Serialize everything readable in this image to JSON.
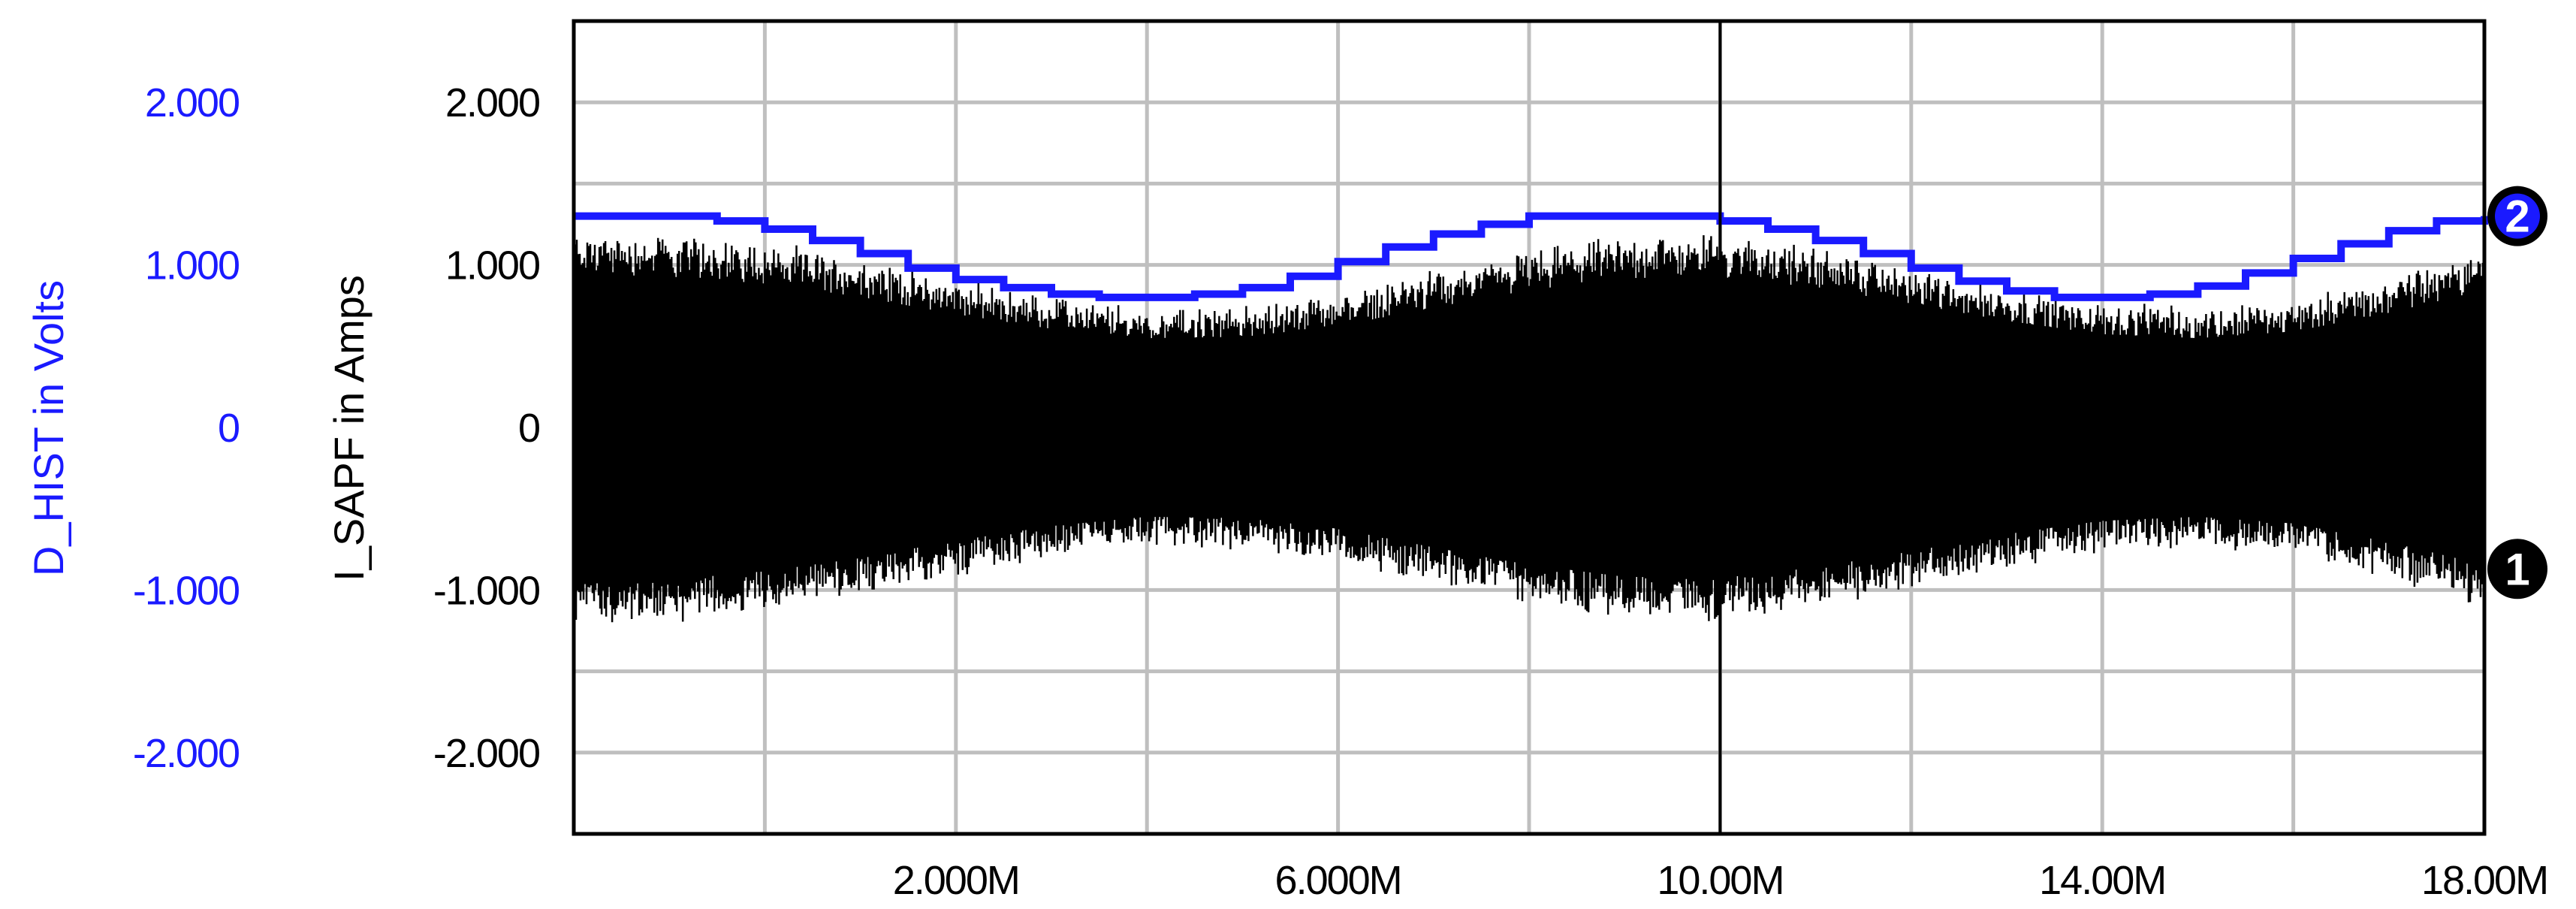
{
  "chart_data": {
    "type": "line",
    "title": "",
    "xlim": [
      0,
      20000000
    ],
    "x_ticks": [
      {
        "value": 4000000,
        "label": "2.000M"
      },
      {
        "value": 8000000,
        "label": "6.000M"
      },
      {
        "value": 12000000,
        "label": "10.00M"
      },
      {
        "value": 16000000,
        "label": "14.00M"
      },
      {
        "value": 20000000,
        "label": "18.00M"
      }
    ],
    "y_axes": [
      {
        "name": "primary",
        "ylabel": "I_SAPF in Amps",
        "color": "#000000",
        "ylim": [
          -2.5,
          2.5
        ],
        "ticks": [
          {
            "value": 2,
            "label": "2.000"
          },
          {
            "value": 1,
            "label": "1.000"
          },
          {
            "value": 0,
            "label": "0"
          },
          {
            "value": -1,
            "label": "-1.000"
          },
          {
            "value": -2,
            "label": "-2.000"
          }
        ]
      },
      {
        "name": "secondary",
        "ylabel": "D_HIST in Volts",
        "color": "#1a1aff",
        "ylim": [
          -2.5,
          2.5
        ],
        "ticks": [
          {
            "value": 2,
            "label": "2.000"
          },
          {
            "value": 1,
            "label": "1.000"
          },
          {
            "value": 0,
            "label": "0"
          },
          {
            "value": -1,
            "label": "-1.000"
          },
          {
            "value": -2,
            "label": "-2.000"
          }
        ]
      }
    ],
    "series": [
      {
        "marker": "1",
        "axis": "primary",
        "color": "#000000",
        "style": "dense noisy band (high-frequency signal)",
        "envelope": {
          "x": [
            0,
            1000000,
            2000000,
            3000000,
            4000000,
            5000000,
            6000000,
            7000000,
            8000000,
            9000000,
            10000000,
            11000000,
            12000000,
            13000000,
            14000000,
            15000000,
            16000000,
            17000000,
            18000000,
            19000000,
            20000000
          ],
          "upper": [
            1.15,
            1.13,
            1.08,
            0.98,
            0.85,
            0.74,
            0.67,
            0.68,
            0.76,
            0.9,
            1.03,
            1.12,
            1.13,
            1.05,
            0.93,
            0.8,
            0.7,
            0.67,
            0.72,
            0.86,
            1.03
          ],
          "lower": [
            -1.15,
            -1.13,
            -1.08,
            -0.98,
            -0.85,
            -0.74,
            -0.67,
            -0.68,
            -0.76,
            -0.9,
            -1.03,
            -1.12,
            -1.13,
            -1.05,
            -0.93,
            -0.8,
            -0.7,
            -0.67,
            -0.72,
            -0.86,
            -1.03
          ]
        }
      },
      {
        "marker": "2",
        "axis": "secondary",
        "color": "#1a1aff",
        "style": "stepped line",
        "x": [
          0,
          1000000,
          1500000,
          2000000,
          2500000,
          3000000,
          3500000,
          4000000,
          4500000,
          5000000,
          5500000,
          6000000,
          6500000,
          7000000,
          7500000,
          8000000,
          8500000,
          9000000,
          9500000,
          10000000,
          11500000,
          12000000,
          12500000,
          13000000,
          13500000,
          14000000,
          14500000,
          15000000,
          15500000,
          16000000,
          16500000,
          17000000,
          17500000,
          18000000,
          18500000,
          19000000,
          19500000,
          20000000
        ],
        "values": [
          1.3,
          1.3,
          1.27,
          1.22,
          1.15,
          1.07,
          0.98,
          0.91,
          0.86,
          0.82,
          0.8,
          0.8,
          0.82,
          0.86,
          0.93,
          1.02,
          1.11,
          1.19,
          1.25,
          1.3,
          1.3,
          1.27,
          1.22,
          1.15,
          1.07,
          0.98,
          0.9,
          0.84,
          0.8,
          0.8,
          0.82,
          0.87,
          0.95,
          1.04,
          1.13,
          1.21,
          1.27,
          1.3
        ]
      }
    ],
    "grid": true,
    "cursor_x": 12000000
  }
}
